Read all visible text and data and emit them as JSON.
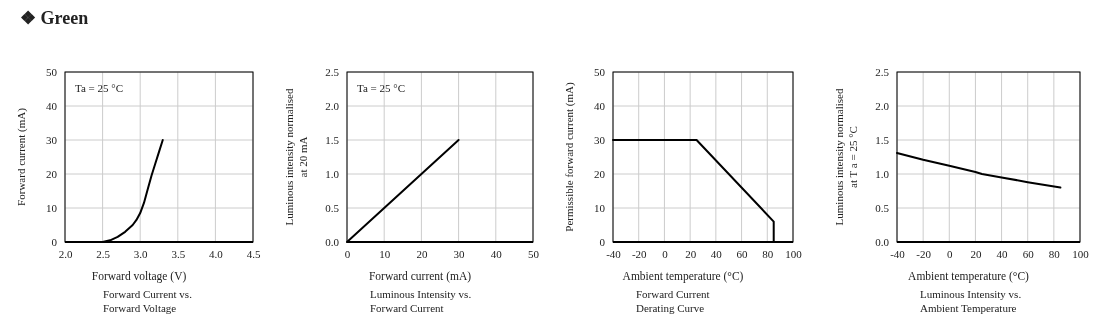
{
  "chart_data": [
    {
      "type": "line",
      "title": "❖ Green",
      "xlabel": "Forward voltage (V)",
      "ylabel": "Forward current (mA)",
      "subtitle": "Forward Current vs.\nForward Voltage",
      "annotations": [
        "Ta = 25 °C"
      ],
      "x": [
        2.5,
        2.6,
        2.7,
        2.8,
        2.9,
        2.95,
        3.0,
        3.05,
        3.1,
        3.15,
        3.2,
        3.25,
        3.3
      ],
      "series": [
        {
          "color": "#000000",
          "values": [
            0,
            0.5,
            1.5,
            3,
            5,
            6.5,
            8.5,
            11.5,
            15.5,
            19.5,
            23,
            26.5,
            30
          ]
        }
      ],
      "xlim": [
        2.0,
        4.5
      ],
      "xticks": [
        {
          "value": 2,
          "label": "2.0"
        },
        2.5,
        {
          "value": 3,
          "label": "3.0"
        },
        3.5,
        {
          "value": 4,
          "label": "4.0"
        },
        4.5
      ],
      "ylim": [
        0,
        50
      ],
      "yticks": [
        0,
        10,
        20,
        30,
        40,
        50
      ],
      "grid": true
    },
    {
      "type": "line",
      "xlabel": "Forward current (mA)",
      "ylabel": "Luminous intensity normalised\nat 20 mA",
      "subtitle": "Luminous Intensity vs.\nForward Current",
      "annotations": [
        "Ta = 25 °C"
      ],
      "x": [
        0,
        10,
        20,
        30
      ],
      "series": [
        {
          "color": "#000000",
          "values": [
            0,
            0.5,
            1.0,
            1.5
          ]
        }
      ],
      "xlim": [
        0,
        50
      ],
      "xticks": [
        0,
        10,
        20,
        30,
        40,
        50
      ],
      "ylim": [
        0,
        2.5
      ],
      "yticks": [
        {
          "value": 0,
          "label": "0.0"
        },
        0.5,
        {
          "value": 1,
          "label": "1.0"
        },
        1.5,
        {
          "value": 2,
          "label": "2.0"
        },
        2.5
      ],
      "grid": true
    },
    {
      "type": "line",
      "xlabel": "Ambient temperature (°C)",
      "ylabel": "Permissible forward current (mA)",
      "subtitle": "Forward Current\nDerating  Curve",
      "x": [
        -40,
        25,
        85,
        85
      ],
      "series": [
        {
          "color": "#000000",
          "values": [
            30,
            30,
            6,
            0
          ]
        }
      ],
      "xlim": [
        -40,
        100
      ],
      "xticks": [
        -40,
        -20,
        0,
        20,
        40,
        60,
        80,
        100
      ],
      "ylim": [
        0,
        50
      ],
      "yticks": [
        0,
        10,
        20,
        30,
        40,
        50
      ],
      "grid": true
    },
    {
      "type": "line",
      "xlabel": "Ambient temperature (°C)",
      "ylabel": "Luminous intensity normalised\nat T a = 25 °C",
      "subtitle": "Luminous Intensity vs.\nAmbient Temperature",
      "x": [
        -40,
        -20,
        0,
        20,
        25,
        40,
        60,
        85
      ],
      "series": [
        {
          "color": "#000000",
          "values": [
            1.31,
            1.21,
            1.12,
            1.03,
            1.0,
            0.95,
            0.88,
            0.8
          ]
        }
      ],
      "xlim": [
        -40,
        100
      ],
      "xticks": [
        -40,
        -20,
        0,
        20,
        40,
        60,
        80,
        100
      ],
      "ylim": [
        0,
        2.5
      ],
      "yticks": [
        {
          "value": 0,
          "label": "0.0"
        },
        0.5,
        {
          "value": 1,
          "label": "1.0"
        },
        1.5,
        {
          "value": 2,
          "label": "2.0"
        },
        2.5
      ],
      "grid": true
    }
  ]
}
